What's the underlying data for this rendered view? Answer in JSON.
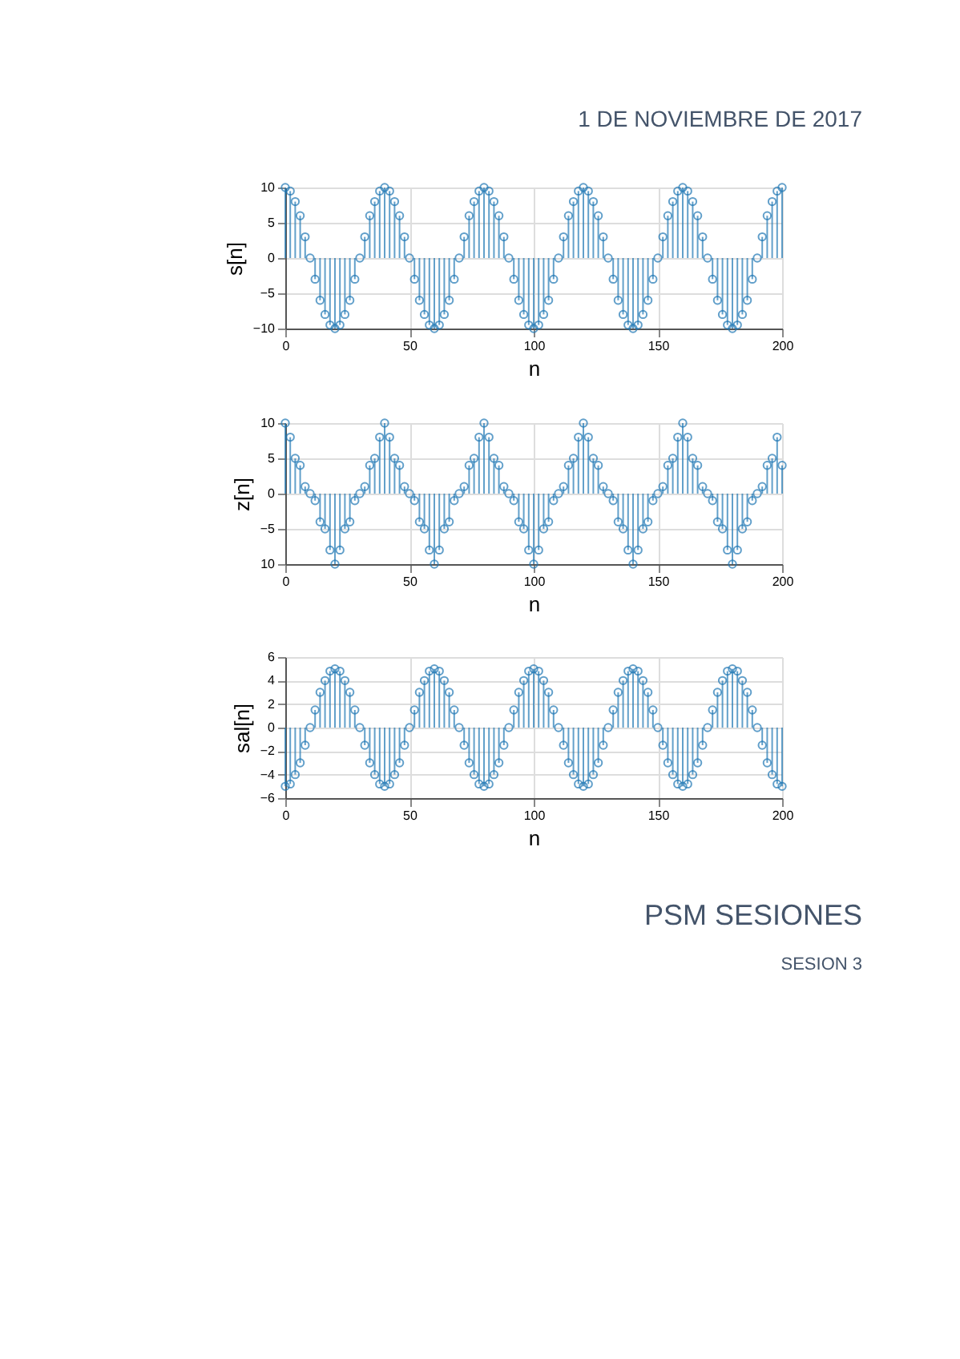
{
  "chart_data": [
    {
      "type": "lollipop",
      "annotations": [
        "1 DE NOVIEMBRE DE 2017"
      ],
      "xlabel": "n",
      "ylabel": "s[n]",
      "color": "#1f77b4",
      "marker": "circle",
      "grid": true,
      "xlim": [
        0,
        200
      ],
      "xticks": [
        0,
        50,
        100,
        150,
        200
      ],
      "ylim": [
        -10,
        10
      ],
      "yticks": [
        -10,
        -5,
        0,
        5,
        10
      ],
      "x": [
        0,
        2,
        4,
        6,
        8,
        10,
        12,
        14,
        16,
        18,
        20,
        22,
        24,
        26,
        28,
        30,
        32,
        34,
        36,
        38,
        40,
        42,
        44,
        46,
        48,
        50,
        52,
        54,
        56,
        58,
        60,
        62,
        64,
        66,
        68,
        70,
        72,
        74,
        76,
        78,
        80,
        82,
        84,
        86,
        88,
        90,
        92,
        94,
        96,
        98,
        100,
        102,
        104,
        106,
        108,
        110,
        112,
        114,
        116,
        118,
        120,
        122,
        124,
        126,
        128,
        130,
        132,
        134,
        136,
        138,
        140,
        142,
        144,
        146,
        148,
        150,
        152,
        154,
        156,
        158,
        160,
        162,
        164,
        166,
        168,
        170,
        172,
        174,
        176,
        178,
        180,
        182,
        184,
        186,
        188,
        190,
        192,
        194,
        196,
        198,
        200
      ],
      "values": [
        10,
        9.5,
        8,
        6,
        3,
        0,
        -3,
        -6,
        -8,
        -9.5,
        -10,
        -9.5,
        -8,
        -6,
        -3,
        0,
        3,
        6,
        8,
        9.5,
        10,
        9.5,
        8,
        6,
        3,
        0,
        -3,
        -6,
        -8,
        -9.5,
        -10,
        -9.5,
        -8,
        -6,
        -3,
        0,
        3,
        6,
        8,
        9.5,
        10,
        9.5,
        8,
        6,
        3,
        0,
        -3,
        -6,
        -8,
        -9.5,
        -10,
        -9.5,
        -8,
        -6,
        -3,
        0,
        3,
        6,
        8,
        9.5,
        10,
        9.5,
        8,
        6,
        3,
        0,
        -3,
        -6,
        -8,
        -9.5,
        -10,
        -9.5,
        -8,
        -6,
        -3,
        0,
        3,
        6,
        8,
        9.5,
        10,
        9.5,
        8,
        6,
        3,
        0,
        -3,
        -6,
        -8,
        -9.5,
        -10,
        -9.5,
        -8,
        -6,
        -3,
        0,
        3,
        6,
        8,
        9.5,
        10
      ]
    },
    {
      "type": "lollipop",
      "xlabel": "n",
      "ylabel": "z[n]",
      "color": "#1f77b4",
      "marker": "circle",
      "grid": true,
      "xlim": [
        0,
        200
      ],
      "xticks": [
        0,
        50,
        100,
        150,
        200
      ],
      "ylim": [
        -10,
        10
      ],
      "yticks": [
        {
          "value": -10,
          "label": "10"
        },
        -5,
        0,
        5,
        10
      ],
      "x": [
        0,
        2,
        4,
        6,
        8,
        10,
        12,
        14,
        16,
        18,
        20,
        22,
        24,
        26,
        28,
        30,
        32,
        34,
        36,
        38,
        40,
        42,
        44,
        46,
        48,
        50,
        52,
        54,
        56,
        58,
        60,
        62,
        64,
        66,
        68,
        70,
        72,
        74,
        76,
        78,
        80,
        82,
        84,
        86,
        88,
        90,
        92,
        94,
        96,
        98,
        100,
        102,
        104,
        106,
        108,
        110,
        112,
        114,
        116,
        118,
        120,
        122,
        124,
        126,
        128,
        130,
        132,
        134,
        136,
        138,
        140,
        142,
        144,
        146,
        148,
        150,
        152,
        154,
        156,
        158,
        160,
        162,
        164,
        166,
        168,
        170,
        172,
        174,
        176,
        178,
        180,
        182,
        184,
        186,
        188,
        190,
        192,
        194,
        196,
        198,
        200
      ],
      "values": [
        10,
        8,
        5,
        4,
        1,
        0,
        -1,
        -4,
        -5,
        -8,
        -10,
        -8,
        -5,
        -4,
        -1,
        0,
        1,
        4,
        5,
        8,
        10,
        8,
        5,
        4,
        1,
        0,
        -1,
        -4,
        -5,
        -8,
        -10,
        -8,
        -5,
        -4,
        -1,
        0,
        1,
        4,
        5,
        8,
        10,
        8,
        5,
        4,
        1,
        0,
        -1,
        -4,
        -5,
        -8,
        -10,
        -8,
        -5,
        -4,
        -1,
        0,
        1,
        4,
        5,
        8,
        10,
        8,
        5,
        4,
        1,
        0,
        -1,
        -4,
        -5,
        -8,
        -10,
        -8,
        -5,
        -4,
        -1,
        0,
        1,
        4,
        5,
        8,
        10,
        8,
        5,
        4,
        1,
        0,
        -1,
        -4,
        -5,
        -8,
        -10,
        -8,
        -5,
        -4,
        -1,
        0,
        1,
        4,
        5,
        8,
        4
      ]
    },
    {
      "type": "lollipop",
      "annotations": [
        "PSM SESIONES",
        "SESION 3"
      ],
      "xlabel": "n",
      "ylabel": "sal[n]",
      "color": "#1f77b4",
      "marker": "circle",
      "grid": true,
      "xlim": [
        0,
        200
      ],
      "xticks": [
        0,
        50,
        100,
        150,
        200
      ],
      "ylim": [
        -6,
        6
      ],
      "yticks": [
        -6,
        -4,
        -2,
        0,
        2,
        4,
        6
      ],
      "x": [
        0,
        2,
        4,
        6,
        8,
        10,
        12,
        14,
        16,
        18,
        20,
        22,
        24,
        26,
        28,
        30,
        32,
        34,
        36,
        38,
        40,
        42,
        44,
        46,
        48,
        50,
        52,
        54,
        56,
        58,
        60,
        62,
        64,
        66,
        68,
        70,
        72,
        74,
        76,
        78,
        80,
        82,
        84,
        86,
        88,
        90,
        92,
        94,
        96,
        98,
        100,
        102,
        104,
        106,
        108,
        110,
        112,
        114,
        116,
        118,
        120,
        122,
        124,
        126,
        128,
        130,
        132,
        134,
        136,
        138,
        140,
        142,
        144,
        146,
        148,
        150,
        152,
        154,
        156,
        158,
        160,
        162,
        164,
        166,
        168,
        170,
        172,
        174,
        176,
        178,
        180,
        182,
        184,
        186,
        188,
        190,
        192,
        194,
        196,
        198,
        200
      ],
      "values": [
        -5,
        -4.8,
        -4,
        -3,
        -1.5,
        0,
        1.5,
        3,
        4,
        4.8,
        5,
        4.8,
        4,
        3,
        1.5,
        0,
        -1.5,
        -3,
        -4,
        -4.8,
        -5,
        -4.8,
        -4,
        -3,
        -1.5,
        0,
        1.5,
        3,
        4,
        4.8,
        5,
        4.8,
        4,
        3,
        1.5,
        0,
        -1.5,
        -3,
        -4,
        -4.8,
        -5,
        -4.8,
        -4,
        -3,
        -1.5,
        0,
        1.5,
        3,
        4,
        4.8,
        5,
        4.8,
        4,
        3,
        1.5,
        0,
        -1.5,
        -3,
        -4,
        -4.8,
        -5,
        -4.8,
        -4,
        -3,
        -1.5,
        0,
        1.5,
        3,
        4,
        4.8,
        5,
        4.8,
        4,
        3,
        1.5,
        0,
        -1.5,
        -3,
        -4,
        -4.8,
        -5,
        -4.8,
        -4,
        -3,
        -1.5,
        0,
        1.5,
        3,
        4,
        4.8,
        5,
        4.8,
        4,
        3,
        1.5,
        0,
        -1.5,
        -3,
        -4,
        -4.8,
        -5
      ]
    }
  ]
}
